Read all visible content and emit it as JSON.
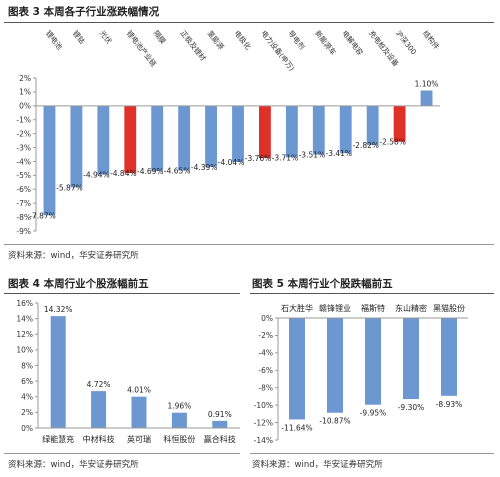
{
  "figure3": {
    "title": "图表 3  本周各子行业涨跌幅情况",
    "source": "资料来源：wind，华安证券研究所"
  },
  "figure4": {
    "title": "图表 4  本周行业个股涨幅前五",
    "source": "资料来源：wind，华安证券研究所"
  },
  "figure5": {
    "title": "图表 5  本周行业个股跌幅前五",
    "source": "资料来源：wind，华安证券研究所"
  },
  "colors": {
    "blue": "#6d97d0",
    "red": "#e0302a",
    "axis": "#9a9a9a"
  },
  "chart_data": [
    {
      "type": "bar",
      "categories": [
        "锂电池",
        "锂钴",
        "光伏",
        "锂电池产业链",
        "隔膜",
        "正极及锂材",
        "氢能源",
        "电极化",
        "电力设备(申万)",
        "导电剂",
        "新能源车",
        "电解电容",
        "充电桩及设备",
        "沪深300",
        "结构件"
      ],
      "values": [
        -7.87,
        -5.87,
        -4.94,
        -4.84,
        -4.69,
        -4.65,
        -4.39,
        -4.04,
        -3.76,
        -3.71,
        -3.51,
        -3.41,
        -2.82,
        -2.58,
        1.1
      ],
      "value_labels": [
        "-7.87%",
        "-5.87%",
        "-4.94%",
        "-4.84%",
        "-4.69%",
        "-4.65%",
        "-4.39%",
        "-4.04%",
        "-3.76%",
        "-3.71%",
        "-3.51%",
        "-3.41%",
        "-2.82%",
        "-2.58%",
        "1.10%"
      ],
      "highlighted": [
        false,
        false,
        false,
        true,
        false,
        false,
        false,
        false,
        true,
        false,
        false,
        false,
        false,
        true,
        false
      ],
      "ylim": [
        -9,
        2
      ],
      "yticks": [
        "2%",
        "1%",
        "0%",
        "-1%",
        "-2%",
        "-3%",
        "-4%",
        "-5%",
        "-6%",
        "-7%",
        "-8%",
        "-9%"
      ]
    },
    {
      "type": "bar",
      "categories": [
        "绿能慧充",
        "中材科技",
        "英可瑞",
        "科恒股份",
        "赢合科技"
      ],
      "values": [
        14.32,
        4.72,
        4.01,
        1.96,
        0.91
      ],
      "value_labels": [
        "14.32%",
        "4.72%",
        "4.01%",
        "1.96%",
        "0.91%"
      ],
      "ylim": [
        0,
        16
      ],
      "yticks": [
        "16%",
        "14%",
        "12%",
        "10%",
        "8%",
        "6%",
        "4%",
        "2%",
        "0%"
      ]
    },
    {
      "type": "bar",
      "categories": [
        "石大胜华",
        "赣锋锂业",
        "福斯特",
        "东山精密",
        "黑猫股份"
      ],
      "values": [
        -11.64,
        -10.87,
        -9.95,
        -9.3,
        -8.93
      ],
      "value_labels": [
        "-11.64%",
        "-10.87%",
        "-9.95%",
        "-9.30%",
        "-8.93%"
      ],
      "ylim": [
        -14,
        0
      ],
      "yticks": [
        "0%",
        "-2%",
        "-4%",
        "-6%",
        "-8%",
        "-10%",
        "-12%",
        "-14%"
      ]
    }
  ]
}
